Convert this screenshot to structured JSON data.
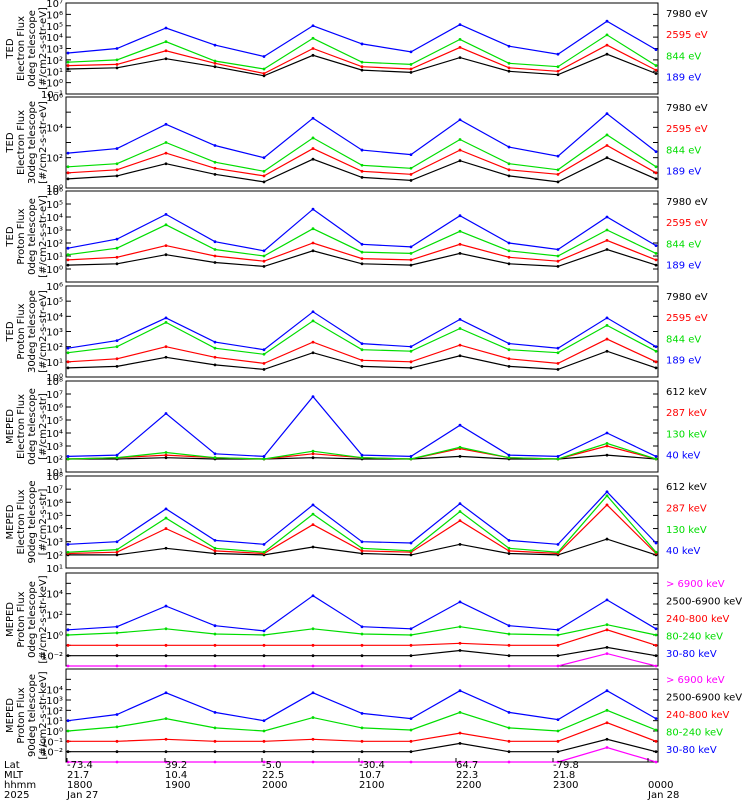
{
  "chart_data": [
    {
      "type": "line",
      "ylabel": [
        "TED",
        "Electron Flux",
        "0deg telescope",
        "[#/cm2-s-str-eV]"
      ],
      "ylog": true,
      "ylim_exp": [
        -1,
        7
      ],
      "tick_labels": [
        "10⁻¹",
        "10⁰",
        "10¹",
        "10²",
        "10³",
        "10⁴",
        "10⁵",
        "10⁶",
        "10⁷"
      ],
      "series": [
        {
          "name": "7980 eV",
          "color": "#000000",
          "values": [
            1.2,
            1.3,
            2.1,
            1.4,
            0.6,
            2.4,
            1.1,
            0.9,
            2.2,
            1.0,
            0.7,
            2.5,
            0.8
          ]
        },
        {
          "name": "2595 eV",
          "color": "#ff0000",
          "values": [
            1.5,
            1.6,
            2.8,
            1.7,
            0.8,
            3.0,
            1.4,
            1.2,
            3.1,
            1.3,
            1.0,
            3.3,
            1.1
          ]
        },
        {
          "name": "844 eV",
          "color": "#00dd00",
          "values": [
            1.8,
            2.0,
            3.6,
            1.9,
            1.2,
            3.9,
            1.8,
            1.6,
            3.8,
            1.7,
            1.4,
            4.2,
            1.5
          ]
        },
        {
          "name": "189 eV",
          "color": "#0000ff",
          "values": [
            2.6,
            3.0,
            4.8,
            3.3,
            2.3,
            5.0,
            3.4,
            2.7,
            5.1,
            3.2,
            2.5,
            5.4,
            2.9
          ]
        }
      ]
    },
    {
      "type": "line",
      "ylabel": [
        "TED",
        "Electron Flux",
        "30deg telescope",
        "[#/cm2-s-str-eV]"
      ],
      "ylog": true,
      "ylim_exp": [
        0,
        6
      ],
      "tick_labels": [
        "10⁰",
        "",
        "10²",
        "",
        "10⁴",
        "",
        "10⁶"
      ],
      "series": [
        {
          "name": "7980 eV",
          "color": "#000000",
          "values": [
            0.6,
            0.8,
            1.6,
            0.9,
            0.4,
            1.9,
            0.7,
            0.5,
            1.8,
            0.8,
            0.4,
            2.0,
            0.6
          ]
        },
        {
          "name": "2595 eV",
          "color": "#ff0000",
          "values": [
            1.0,
            1.2,
            2.3,
            1.3,
            0.8,
            2.6,
            1.1,
            0.9,
            2.5,
            1.2,
            0.9,
            2.8,
            1.0
          ]
        },
        {
          "name": "844 eV",
          "color": "#00dd00",
          "values": [
            1.4,
            1.6,
            3.0,
            1.7,
            1.1,
            3.3,
            1.5,
            1.3,
            3.2,
            1.6,
            1.2,
            3.5,
            1.4
          ]
        },
        {
          "name": "189 eV",
          "color": "#0000ff",
          "values": [
            2.3,
            2.6,
            4.2,
            2.8,
            2.0,
            4.6,
            2.5,
            2.2,
            4.5,
            2.7,
            2.1,
            4.9,
            2.4
          ]
        }
      ]
    },
    {
      "type": "line",
      "ylabel": [
        "TED",
        "Proton Flux",
        "0deg telescope",
        "[#/cm2-s-str-eV]"
      ],
      "ylog": true,
      "ylim_exp": [
        -1,
        6
      ],
      "tick_labels": [
        "",
        "10⁰",
        "10¹",
        "10²",
        "10³",
        "10⁴",
        "10⁵",
        "10⁶"
      ],
      "series": [
        {
          "name": "7980 eV",
          "color": "#000000",
          "values": [
            0.3,
            0.4,
            1.1,
            0.5,
            0.2,
            1.4,
            0.4,
            0.3,
            1.2,
            0.4,
            0.2,
            1.5,
            0.3
          ]
        },
        {
          "name": "2595 eV",
          "color": "#ff0000",
          "values": [
            0.7,
            0.9,
            1.8,
            1.0,
            0.6,
            2.0,
            0.8,
            0.7,
            1.9,
            0.9,
            0.6,
            2.2,
            0.7
          ]
        },
        {
          "name": "844 eV",
          "color": "#00dd00",
          "values": [
            1.1,
            1.6,
            3.4,
            1.5,
            1.0,
            3.1,
            1.3,
            1.2,
            2.9,
            1.4,
            1.0,
            3.0,
            1.2
          ]
        },
        {
          "name": "189 eV",
          "color": "#0000ff",
          "values": [
            1.6,
            2.3,
            4.2,
            2.1,
            1.4,
            4.6,
            1.9,
            1.7,
            4.1,
            2.0,
            1.5,
            4.0,
            1.8
          ]
        }
      ]
    },
    {
      "type": "line",
      "ylabel": [
        "TED",
        "Proton Flux",
        "30deg telescope",
        "[#/cm2-s-str-eV]"
      ],
      "ylog": true,
      "ylim_exp": [
        0,
        6
      ],
      "tick_labels": [
        "10⁰",
        "10¹",
        "10²",
        "10³",
        "10⁴",
        "10⁵",
        "10⁶"
      ],
      "series": [
        {
          "name": "7980 eV",
          "color": "#000000",
          "values": [
            0.6,
            0.7,
            1.3,
            0.8,
            0.5,
            1.6,
            0.7,
            0.6,
            1.4,
            0.7,
            0.5,
            1.7,
            0.6
          ]
        },
        {
          "name": "2595 eV",
          "color": "#ff0000",
          "values": [
            1.0,
            1.2,
            2.0,
            1.3,
            0.9,
            2.3,
            1.1,
            1.0,
            2.1,
            1.2,
            0.9,
            2.5,
            1.0
          ]
        },
        {
          "name": "844 eV",
          "color": "#00dd00",
          "values": [
            1.6,
            2.0,
            3.6,
            1.9,
            1.5,
            3.7,
            1.8,
            1.7,
            3.2,
            1.8,
            1.6,
            3.4,
            1.7
          ]
        },
        {
          "name": "189 eV",
          "color": "#0000ff",
          "values": [
            1.9,
            2.4,
            3.9,
            2.3,
            1.8,
            4.3,
            2.2,
            2.0,
            3.8,
            2.2,
            1.9,
            3.9,
            2.0
          ]
        }
      ]
    },
    {
      "type": "line",
      "ylabel": [
        "MEPED",
        "Electron Flux",
        "0deg telescope",
        "[#/cm2-s-str]"
      ],
      "ylog": true,
      "ylim_exp": [
        1,
        8
      ],
      "tick_labels": [
        "10¹",
        "10²",
        "10³",
        "10⁴",
        "10⁵",
        "10⁶",
        "10⁷",
        "10⁸"
      ],
      "series": [
        {
          "name": "612 keV",
          "color": "#000000",
          "values": [
            2.0,
            2.0,
            2.1,
            2.0,
            2.0,
            2.1,
            2.0,
            2.0,
            2.2,
            2.0,
            2.0,
            2.3,
            2.0
          ]
        },
        {
          "name": "287 keV",
          "color": "#ff0000",
          "values": [
            2.0,
            2.1,
            2.3,
            2.1,
            2.0,
            2.4,
            2.1,
            2.0,
            2.8,
            2.1,
            2.0,
            3.0,
            2.0
          ]
        },
        {
          "name": "130 keV",
          "color": "#00dd00",
          "values": [
            2.0,
            2.1,
            2.5,
            2.1,
            2.0,
            2.6,
            2.1,
            2.0,
            2.9,
            2.1,
            2.0,
            3.2,
            2.0
          ]
        },
        {
          "name": "40 keV",
          "color": "#0000ff",
          "values": [
            2.2,
            2.3,
            5.5,
            2.4,
            2.2,
            6.8,
            2.3,
            2.2,
            4.6,
            2.3,
            2.2,
            4.0,
            2.2
          ]
        }
      ]
    },
    {
      "type": "line",
      "ylabel": [
        "MEPED",
        "Electron Flux",
        "90deg telescope",
        "[#/cm2-s-str]"
      ],
      "ylog": true,
      "ylim_exp": [
        1,
        8
      ],
      "tick_labels": [
        "10¹",
        "10²",
        "10³",
        "10⁴",
        "10⁵",
        "10⁶",
        "10⁷",
        "10⁸"
      ],
      "series": [
        {
          "name": "612 keV",
          "color": "#000000",
          "values": [
            2.0,
            2.0,
            2.5,
            2.1,
            2.0,
            2.6,
            2.1,
            2.0,
            2.8,
            2.1,
            2.0,
            3.2,
            2.0
          ]
        },
        {
          "name": "287 keV",
          "color": "#ff0000",
          "values": [
            2.1,
            2.2,
            4.0,
            2.3,
            2.1,
            4.3,
            2.3,
            2.2,
            4.6,
            2.3,
            2.1,
            5.8,
            2.1
          ]
        },
        {
          "name": "130 keV",
          "color": "#00dd00",
          "values": [
            2.2,
            2.4,
            4.8,
            2.5,
            2.2,
            5.1,
            2.5,
            2.3,
            5.3,
            2.5,
            2.2,
            6.5,
            2.2
          ]
        },
        {
          "name": "40 keV",
          "color": "#0000ff",
          "values": [
            2.8,
            3.0,
            5.5,
            3.1,
            2.8,
            5.8,
            3.0,
            2.9,
            5.9,
            3.1,
            2.8,
            6.8,
            2.9
          ]
        }
      ]
    },
    {
      "type": "line",
      "ylabel": [
        "MEPED",
        "Proton Flux",
        "0deg telescope",
        "[#/cm2-s-str-keV]"
      ],
      "ylog": true,
      "ylim_exp": [
        -3,
        6
      ],
      "tick_labels": [
        "",
        "10⁻²",
        "",
        "10⁰",
        "",
        "10²",
        "",
        "10⁴",
        ""
      ],
      "series": [
        {
          "name": "> 6900 keV",
          "color": "#ff00ff",
          "values": [
            -3.0,
            -3.0,
            -3.0,
            -3.0,
            -3.0,
            -3.0,
            -3.0,
            -3.0,
            -3.0,
            -3.0,
            -3.0,
            -1.8,
            -3.0
          ]
        },
        {
          "name": "2500-6900 keV",
          "color": "#000000",
          "values": [
            -2.0,
            -2.0,
            -2.0,
            -2.0,
            -2.0,
            -2.0,
            -2.0,
            -2.0,
            -1.5,
            -2.0,
            -2.0,
            -1.2,
            -2.0
          ]
        },
        {
          "name": "240-800 keV",
          "color": "#ff0000",
          "values": [
            -1.0,
            -1.0,
            -1.0,
            -1.0,
            -1.0,
            -1.0,
            -1.0,
            -1.0,
            -0.8,
            -1.0,
            -1.0,
            0.5,
            -1.0
          ]
        },
        {
          "name": "80-240 keV",
          "color": "#00dd00",
          "values": [
            0.0,
            0.2,
            0.6,
            0.1,
            0.0,
            0.6,
            0.1,
            0.0,
            0.8,
            0.1,
            0.0,
            1.0,
            0.0
          ]
        },
        {
          "name": "30-80 keV",
          "color": "#0000ff",
          "values": [
            0.5,
            0.8,
            2.8,
            0.9,
            0.4,
            3.8,
            0.8,
            0.6,
            3.2,
            0.9,
            0.5,
            3.4,
            0.6
          ]
        }
      ]
    },
    {
      "type": "line",
      "ylabel": [
        "MEPED",
        "Proton Flux",
        "90deg telescope",
        "[#/cm2-s-str-keV]"
      ],
      "ylog": true,
      "ylim_exp": [
        -3,
        6
      ],
      "tick_labels": [
        "",
        "10⁻²",
        "10⁻¹",
        "10⁰",
        "10¹",
        "10²",
        "10³",
        "10⁴",
        ""
      ],
      "series": [
        {
          "name": "> 6900 keV",
          "color": "#ff00ff",
          "values": [
            -3.0,
            -3.0,
            -3.0,
            -3.0,
            -3.0,
            -3.0,
            -3.0,
            -3.0,
            -3.0,
            -3.0,
            -3.0,
            -1.6,
            -3.0
          ]
        },
        {
          "name": "2500-6900 keV",
          "color": "#000000",
          "values": [
            -2.0,
            -2.0,
            -2.0,
            -2.0,
            -2.0,
            -2.0,
            -2.0,
            -2.0,
            -1.2,
            -2.0,
            -2.0,
            -0.8,
            -2.0
          ]
        },
        {
          "name": "240-800 keV",
          "color": "#ff0000",
          "values": [
            -1.0,
            -1.0,
            -0.8,
            -1.0,
            -1.0,
            -0.8,
            -1.0,
            -1.0,
            -0.2,
            -1.0,
            -1.0,
            0.8,
            -1.0
          ]
        },
        {
          "name": "80-240 keV",
          "color": "#00dd00",
          "values": [
            0.0,
            0.4,
            1.2,
            0.3,
            0.0,
            1.3,
            0.3,
            0.1,
            1.8,
            0.3,
            0.0,
            2.0,
            0.1
          ]
        },
        {
          "name": "30-80 keV",
          "color": "#0000ff",
          "values": [
            1.0,
            1.6,
            3.7,
            1.8,
            1.0,
            3.7,
            1.7,
            1.2,
            3.9,
            1.8,
            1.1,
            3.9,
            1.2
          ]
        }
      ]
    }
  ],
  "x_axis": {
    "rows": [
      {
        "label": "Lat",
        "values": [
          "-73.4",
          "39.2",
          "-5.0",
          "-30.4",
          "64.7",
          "-79.8",
          ""
        ]
      },
      {
        "label": "MLT",
        "values": [
          "21.7",
          "10.4",
          "22.5",
          "10.7",
          "22.3",
          "21.8",
          ""
        ]
      },
      {
        "label": "hhmm",
        "values": [
          "1800",
          "1900",
          "2000",
          "2100",
          "2200",
          "2300",
          "0000"
        ]
      },
      {
        "label": "2025",
        "values": [
          "Jan 27",
          "",
          "",
          "",
          "",
          "",
          "Jan 28"
        ]
      }
    ]
  }
}
